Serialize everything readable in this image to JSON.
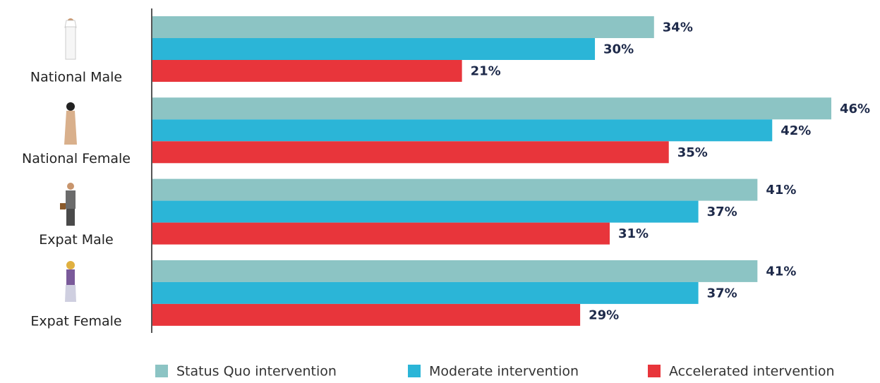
{
  "chart_data": {
    "type": "bar",
    "orientation": "horizontal",
    "categories": [
      "National Male",
      "National Female",
      "Expat Male",
      "Expat Female"
    ],
    "series": [
      {
        "name": "Status Quo intervention",
        "color": "#8cc4c4",
        "values": [
          34,
          46,
          41,
          41
        ],
        "value_labels": [
          "34%",
          "46%",
          "41%",
          "41%"
        ]
      },
      {
        "name": "Moderate intervention",
        "color": "#2bb5d7",
        "values": [
          30,
          42,
          37,
          37
        ],
        "value_labels": [
          "30%",
          "42%",
          "37%",
          "37%"
        ]
      },
      {
        "name": "Accelerated intervention",
        "color": "#e8353b",
        "values": [
          21,
          35,
          31,
          29
        ],
        "value_labels": [
          "21%",
          "35%",
          "31%",
          "29%"
        ]
      }
    ],
    "legend": "bottom"
  }
}
